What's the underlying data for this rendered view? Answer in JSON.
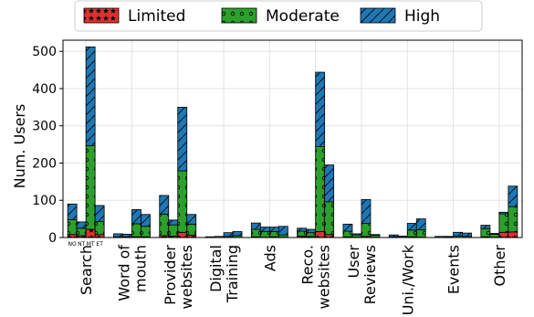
{
  "chart_data": {
    "type": "bar",
    "stacked": true,
    "ylabel": "Num. Users",
    "xlabel": "",
    "ylim": [
      0,
      530
    ],
    "yticks": [
      0,
      100,
      200,
      300,
      400,
      500
    ],
    "grid": true,
    "legend_position": "top",
    "subgroup_labels": [
      "NO",
      "NT",
      "MT",
      "ET"
    ],
    "categories": [
      "Search",
      "Word of\nmouth",
      "Provider\nwebsites",
      "Digital\nTraining",
      "Ads",
      "Reco.\nwebsites",
      "User\nReviews",
      "Uni./Work",
      "Events",
      "Other"
    ],
    "series": [
      {
        "name": "Limited",
        "color": "#e03030",
        "hatch": "stars",
        "values": [
          [
            8,
            5,
            22,
            8
          ],
          [
            0,
            0,
            2,
            2
          ],
          [
            5,
            4,
            14,
            6
          ],
          [
            0,
            0,
            0,
            0
          ],
          [
            2,
            1,
            2,
            1
          ],
          [
            4,
            3,
            16,
            8
          ],
          [
            2,
            1,
            3,
            1
          ],
          [
            0,
            0,
            2,
            1
          ],
          [
            0,
            0,
            0,
            0
          ],
          [
            2,
            1,
            14,
            15
          ]
        ]
      },
      {
        "name": "Moderate",
        "color": "#2ca02c",
        "hatch": "circles",
        "values": [
          [
            40,
            20,
            225,
            35
          ],
          [
            2,
            2,
            35,
            28
          ],
          [
            58,
            30,
            165,
            30
          ],
          [
            0,
            0,
            3,
            5
          ],
          [
            20,
            15,
            14,
            6
          ],
          [
            13,
            10,
            228,
            88
          ],
          [
            15,
            6,
            35,
            5
          ],
          [
            2,
            1,
            18,
            20
          ],
          [
            0,
            1,
            4,
            3
          ],
          [
            22,
            8,
            50,
            68
          ]
        ]
      },
      {
        "name": "High",
        "color": "#1f77b4",
        "hatch": "diagonal",
        "values": [
          [
            42,
            17,
            265,
            43
          ],
          [
            8,
            7,
            38,
            32
          ],
          [
            50,
            13,
            171,
            26
          ],
          [
            2,
            3,
            10,
            11
          ],
          [
            17,
            12,
            12,
            23
          ],
          [
            8,
            9,
            200,
            99
          ],
          [
            19,
            3,
            64,
            2
          ],
          [
            5,
            3,
            18,
            29
          ],
          [
            3,
            2,
            10,
            9
          ],
          [
            9,
            2,
            4,
            55
          ]
        ]
      }
    ]
  }
}
